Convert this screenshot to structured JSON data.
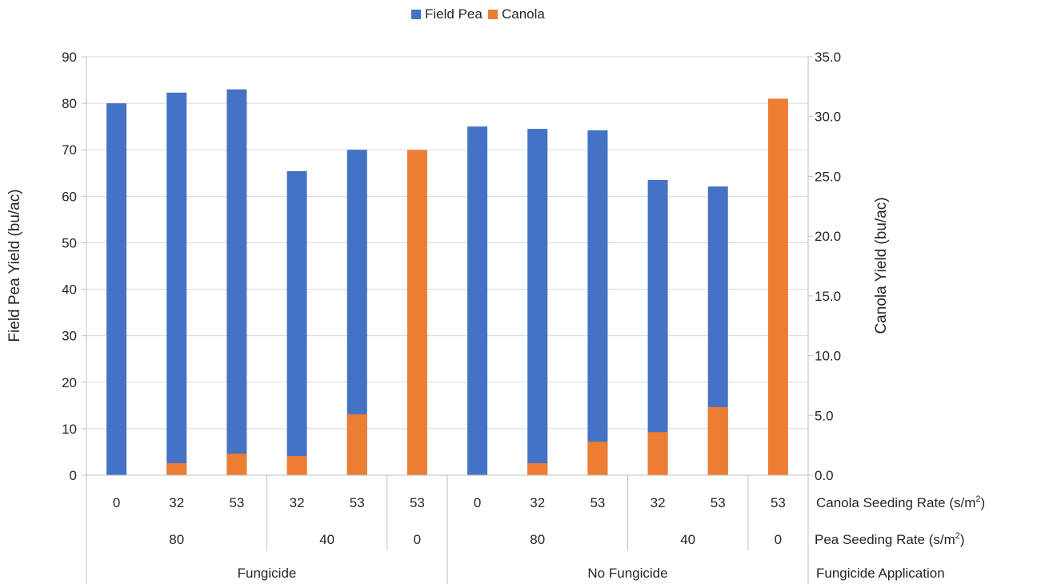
{
  "chart_data": {
    "type": "bar",
    "title": "",
    "legend": {
      "position": "top-center"
    },
    "colors": {
      "field_pea": "#4472C4",
      "canola": "#ED7D31",
      "grid": "#D9D9D9",
      "axis": "#BFBFBF"
    },
    "y_left": {
      "label": "Field Pea Yield (bu/ac)",
      "ylim": [
        0,
        90
      ],
      "ticks": [
        "0",
        "10",
        "20",
        "30",
        "40",
        "50",
        "60",
        "70",
        "80",
        "90"
      ]
    },
    "y_right": {
      "label": "Canola Yield (bu/ac)",
      "ylim": [
        0,
        35
      ],
      "ticks": [
        "0.0",
        "5.0",
        "10.0",
        "15.0",
        "20.0",
        "25.0",
        "30.0",
        "35.0"
      ]
    },
    "categories": [
      {
        "canola_rate": "0",
        "pea_rate": "80",
        "fungicide": "Fungicide"
      },
      {
        "canola_rate": "32",
        "pea_rate": "80",
        "fungicide": "Fungicide"
      },
      {
        "canola_rate": "53",
        "pea_rate": "80",
        "fungicide": "Fungicide"
      },
      {
        "canola_rate": "32",
        "pea_rate": "40",
        "fungicide": "Fungicide"
      },
      {
        "canola_rate": "53",
        "pea_rate": "40",
        "fungicide": "Fungicide"
      },
      {
        "canola_rate": "53",
        "pea_rate": "0",
        "fungicide": "Fungicide"
      },
      {
        "canola_rate": "0",
        "pea_rate": "80",
        "fungicide": "No Fungicide"
      },
      {
        "canola_rate": "32",
        "pea_rate": "80",
        "fungicide": "No Fungicide"
      },
      {
        "canola_rate": "53",
        "pea_rate": "80",
        "fungicide": "No Fungicide"
      },
      {
        "canola_rate": "32",
        "pea_rate": "40",
        "fungicide": "No Fungicide"
      },
      {
        "canola_rate": "53",
        "pea_rate": "40",
        "fungicide": "No Fungicide"
      },
      {
        "canola_rate": "53",
        "pea_rate": "0",
        "fungicide": "No Fungicide"
      }
    ],
    "series": [
      {
        "name": "Field Pea",
        "axis": "left",
        "values": [
          80,
          82.3,
          83,
          65.4,
          70,
          null,
          75,
          74.5,
          74.2,
          63.5,
          62.1,
          null
        ]
      },
      {
        "name": "Canola",
        "axis": "right",
        "values": [
          null,
          1.0,
          1.8,
          1.6,
          5.1,
          27.2,
          null,
          1.0,
          2.8,
          3.6,
          5.7,
          31.5
        ]
      }
    ],
    "axis_row_labels": {
      "canola_rate": "Canola Seeding Rate (s/m",
      "pea_rate": "Pea Seeding Rate (s/m",
      "superscript": "2",
      "close": ")",
      "fungicide": "Fungicide Application"
    },
    "pea_groups": [
      {
        "label": "80"
      },
      {
        "label": "40"
      },
      {
        "label": "0"
      },
      {
        "label": "80"
      },
      {
        "label": "40"
      },
      {
        "label": "0"
      }
    ],
    "fungicide_groups": [
      {
        "label": "Fungicide"
      },
      {
        "label": "No Fungicide"
      }
    ]
  }
}
